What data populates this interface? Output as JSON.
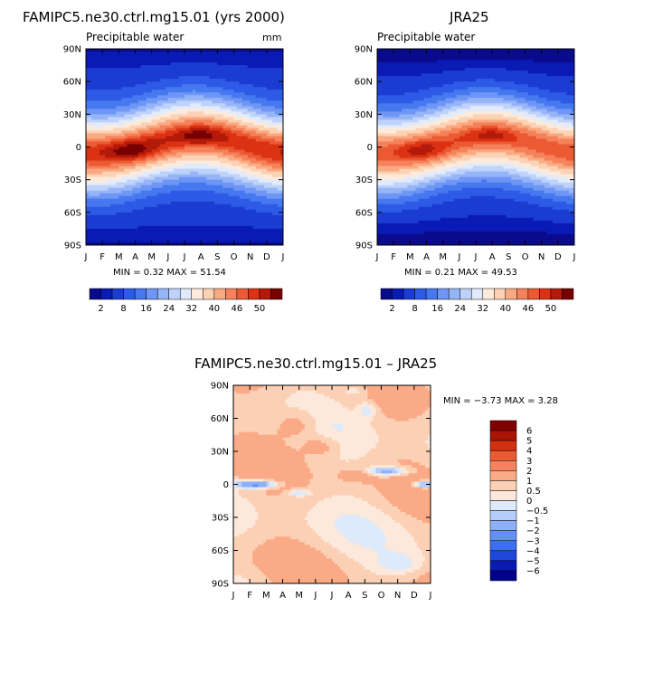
{
  "palettes": {
    "abs": [
      "#0a0a8c",
      "#0a1ab4",
      "#1a3cd2",
      "#2d5ae6",
      "#4678f0",
      "#6e96f5",
      "#96b4f8",
      "#bed2fa",
      "#e1ebfc",
      "#fcebdc",
      "#fcd2b4",
      "#faaa82",
      "#f5825a",
      "#eb5a32",
      "#dc3214",
      "#b41a0a",
      "#780000"
    ],
    "diff": [
      "#00008c",
      "#0a1ab4",
      "#1e46dc",
      "#3c6ef0",
      "#6490f5",
      "#8cb0f8",
      "#b4cdfa",
      "#dceafc",
      "#fde8dc",
      "#fcd0b4",
      "#faaa86",
      "#f5825c",
      "#eb5a32",
      "#d2300f",
      "#aa1405",
      "#820000"
    ]
  },
  "panels": [
    {
      "id": "model",
      "title": "FAMIPC5.ne30.ctrl.mg15.01 (yrs 2000)",
      "subtitle": "Precipitable water",
      "units": "mm",
      "minmax": "MIN =    0.32 MAX =   51.54"
    },
    {
      "id": "obs",
      "title": "JRA25",
      "subtitle": "Precipitable water",
      "units": "",
      "minmax": "MIN =    0.21 MAX =   49.53"
    },
    {
      "id": "diff",
      "title": "FAMIPC5.ne30.ctrl.mg15.01 – JRA25",
      "subtitle": "",
      "units": "",
      "minmax": "MIN =   −3.73 MAX =    3.28"
    }
  ],
  "axes": {
    "x_ticks": [
      "J",
      "F",
      "M",
      "A",
      "M",
      "J",
      "J",
      "A",
      "S",
      "O",
      "N",
      "D",
      "J"
    ],
    "y_ticks": [
      "90N",
      "60N",
      "30N",
      "0",
      "30S",
      "60S",
      "90S"
    ]
  },
  "colorbars": {
    "abs_labels": [
      {
        "after": 1,
        "text": "2"
      },
      {
        "after": 3,
        "text": "8"
      },
      {
        "after": 5,
        "text": "16"
      },
      {
        "after": 7,
        "text": "24"
      },
      {
        "after": 9,
        "text": "32"
      },
      {
        "after": 11,
        "text": "40"
      },
      {
        "after": 13,
        "text": "46"
      },
      {
        "after": 15,
        "text": "50"
      }
    ],
    "diff_labels": [
      "6",
      "5",
      "4",
      "3",
      "2",
      "1",
      "0.5",
      "0",
      "−0.5",
      "−1",
      "−2",
      "−3",
      "−4",
      "−5",
      "−6"
    ]
  },
  "chart_data": [
    {
      "type": "heatmap",
      "title": "FAMIPC5.ne30.ctrl.mg15.01 (yrs 2000)",
      "subtitle": "Precipitable water",
      "units": "mm",
      "x": "month (J..J)",
      "y": "latitude (90S..90N)",
      "min": 0.32,
      "max": 51.54,
      "levels": [
        2,
        4,
        8,
        12,
        16,
        20,
        24,
        28,
        32,
        36,
        40,
        43,
        46,
        48,
        50,
        52
      ],
      "field_notes": "seasonal band of maximum near equator, peak ~50 in Jul-Aug near 5-10N"
    },
    {
      "type": "heatmap",
      "title": "JRA25",
      "subtitle": "Precipitable water",
      "min": 0.21,
      "max": 49.53,
      "levels": [
        2,
        4,
        8,
        12,
        16,
        20,
        24,
        28,
        32,
        36,
        40,
        43,
        46,
        48,
        50,
        52
      ]
    },
    {
      "type": "heatmap",
      "title": "FAMIPC5.ne30.ctrl.mg15.01 – JRA25",
      "min": -3.73,
      "max": 3.28,
      "levels": [
        -6,
        -5,
        -4,
        -3,
        -2,
        -1,
        -0.5,
        0,
        0.5,
        1,
        2,
        3,
        4,
        5,
        6
      ]
    }
  ]
}
